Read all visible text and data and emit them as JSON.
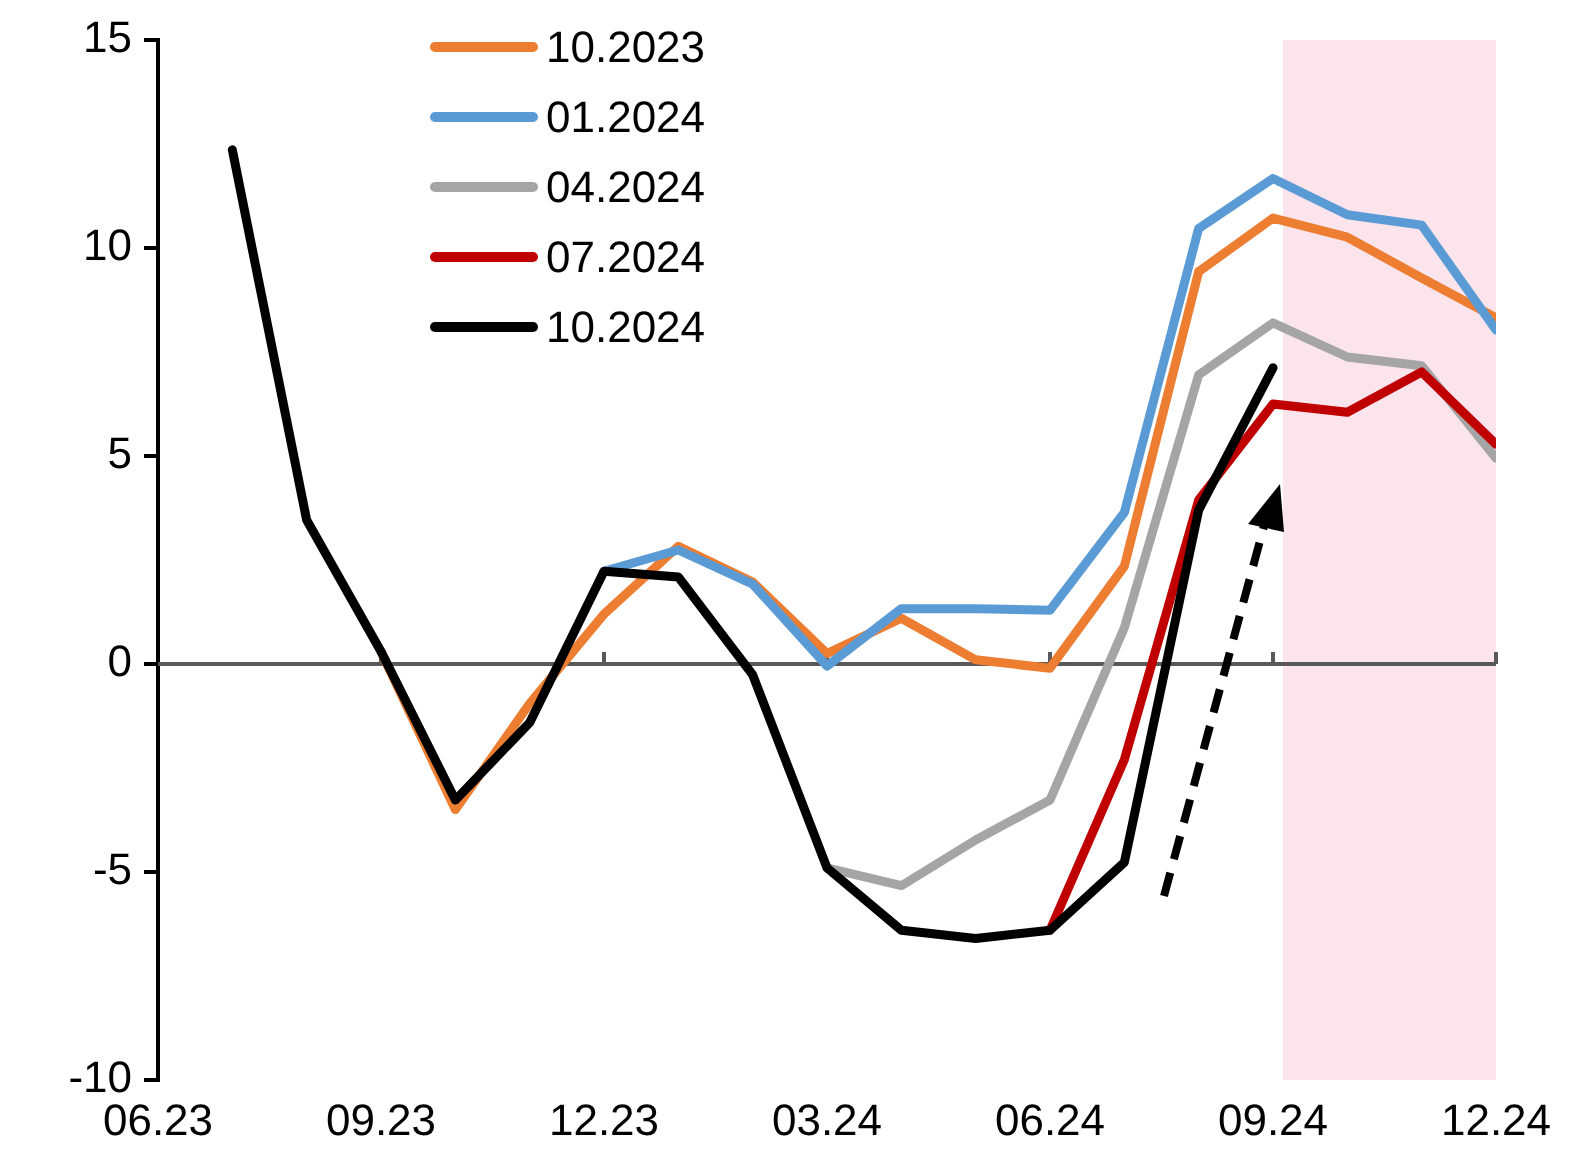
{
  "chart_data": {
    "type": "line",
    "categories": [
      "06.23",
      null,
      null,
      "09.23",
      null,
      null,
      "12.23",
      null,
      null,
      "03.24",
      null,
      null,
      "06.24",
      null,
      null,
      "09.24",
      null,
      null,
      "12.24"
    ],
    "series": [
      {
        "name": "10.2023",
        "color": "#ed7d31",
        "values": [
          null,
          null,
          null,
          0.3,
          -3.5,
          -0.95,
          1.2,
          2.83,
          1.97,
          0.25,
          1.1,
          0.1,
          -0.1,
          2.35,
          9.43,
          10.72,
          10.26,
          9.28,
          8.32
        ]
      },
      {
        "name": "01.2024",
        "color": "#5b9bd5",
        "values": [
          null,
          null,
          null,
          null,
          null,
          null,
          2.23,
          2.74,
          1.92,
          -0.05,
          1.33,
          1.33,
          1.29,
          3.64,
          10.47,
          11.67,
          10.8,
          10.55,
          8.03
        ]
      },
      {
        "name": "04.2024",
        "color": "#a5a5a5",
        "values": [
          null,
          null,
          null,
          null,
          null,
          null,
          null,
          null,
          null,
          -4.9,
          -5.33,
          -4.23,
          -3.27,
          0.87,
          6.95,
          8.2,
          7.38,
          7.17,
          4.95
        ]
      },
      {
        "name": "07.2024",
        "color": "#c00000",
        "values": [
          null,
          null,
          null,
          null,
          null,
          null,
          null,
          null,
          null,
          null,
          null,
          null,
          -6.4,
          -2.3,
          3.94,
          6.25,
          6.05,
          7.02,
          5.28
        ]
      },
      {
        "name": "10.2024",
        "color": "#000000",
        "values": [
          null,
          12.36,
          3.46,
          0.3,
          -3.27,
          -1.41,
          2.23,
          2.09,
          -0.26,
          -4.9,
          -6.4,
          -6.6,
          -6.4,
          -4.77,
          3.7,
          7.12,
          null,
          null,
          null
        ]
      }
    ],
    "ylim": [
      -10,
      15
    ],
    "yticks": [
      -10,
      -5,
      0,
      5,
      10,
      15
    ],
    "ref_lines": [
      {
        "axis": "y",
        "value": 0,
        "color": "#595959"
      }
    ],
    "bands": [
      {
        "axis": "x",
        "from": "09.24",
        "to": "12.24",
        "color": "#fce4ec"
      }
    ],
    "grid": false,
    "legend": "top",
    "marker": "none",
    "line_style": "solid"
  }
}
